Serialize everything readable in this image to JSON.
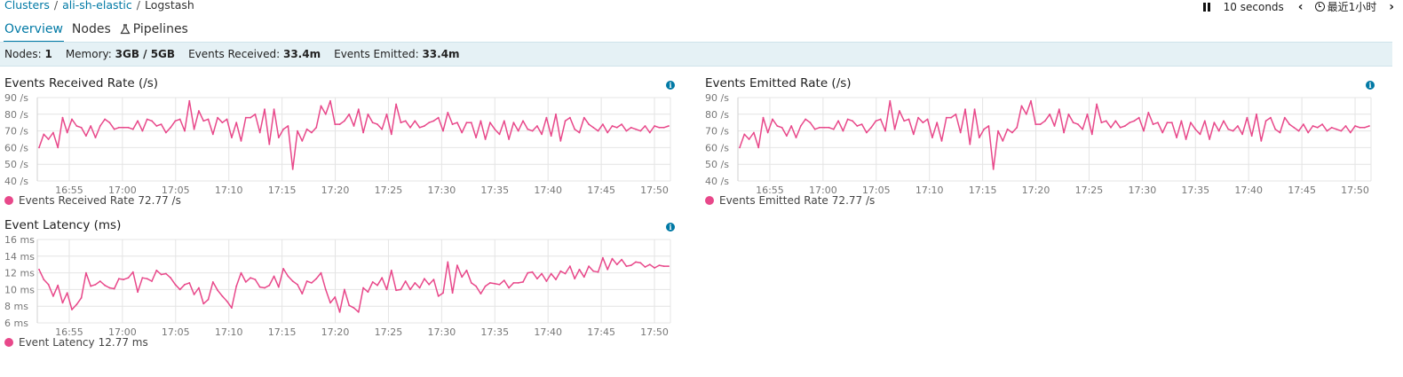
{
  "breadcrumb": {
    "clusters": "Clusters",
    "cluster": "ali-sh-elastic",
    "current": "Logstash",
    "sep": "/"
  },
  "tabs": {
    "overview": "Overview",
    "nodes": "Nodes",
    "pipelines": "Pipelines"
  },
  "controls": {
    "interval": "10 seconds",
    "time_range": "最近1小时"
  },
  "status": {
    "nodes_label": "Nodes:",
    "nodes_value": "1",
    "memory_label": "Memory:",
    "memory_value": "3GB / 5GB",
    "received_label": "Events Received:",
    "received_value": "33.4m",
    "emitted_label": "Events Emitted:",
    "emitted_value": "33.4m"
  },
  "colors": {
    "series": "#e8488a",
    "accent": "#0079a5",
    "status_bg": "#e5f1f5"
  },
  "icons": {
    "info": "info-icon",
    "pause": "pause-icon",
    "prev": "chevron-left-icon",
    "next": "chevron-right-icon",
    "clock": "clock-icon",
    "pipelines": "flask-icon"
  },
  "charts": {
    "received": {
      "title": "Events Received Rate (/s)",
      "legend_name": "Events Received Rate",
      "legend_value": "72.77 /s"
    },
    "emitted": {
      "title": "Events Emitted Rate (/s)",
      "legend_name": "Events Emitted Rate",
      "legend_value": "72.77 /s"
    },
    "latency": {
      "title": "Event Latency (ms)",
      "legend_name": "Event Latency",
      "legend_value": "12.77 ms"
    }
  },
  "chart_data": [
    {
      "type": "line",
      "title": "Events Received Rate (/s)",
      "ylim": [
        40,
        90
      ],
      "y_ticks": [
        "40 /s",
        "50 /s",
        "60 /s",
        "70 /s",
        "80 /s",
        "90 /s"
      ],
      "x_ticks": [
        "16:55",
        "17:00",
        "17:05",
        "17:10",
        "17:15",
        "17:20",
        "17:25",
        "17:30",
        "17:35",
        "17:40",
        "17:45",
        "17:50"
      ],
      "x_range": [
        "16:52",
        "17:51.5"
      ],
      "grid": true,
      "series": [
        {
          "name": "Events Received Rate",
          "values": [
            60,
            68,
            65,
            69,
            60,
            78,
            69,
            77,
            73,
            72,
            67,
            73,
            66,
            73,
            77,
            75,
            71,
            72,
            72,
            72,
            71,
            76,
            70,
            77,
            76,
            73,
            74,
            69,
            72,
            76,
            77,
            70,
            88,
            71,
            82,
            76,
            77,
            68,
            78,
            75,
            77,
            66,
            75,
            64,
            78,
            78,
            80,
            69,
            83,
            62,
            83,
            66,
            71,
            73,
            47,
            70,
            64,
            71,
            69,
            72,
            85,
            80,
            88,
            74,
            74,
            76,
            80,
            73,
            83,
            69,
            80,
            75,
            74,
            71,
            80,
            68,
            86,
            75,
            76,
            72,
            76,
            72,
            73,
            75,
            76,
            78,
            70,
            81,
            74,
            75,
            69,
            75,
            75,
            66,
            76,
            65,
            75,
            71,
            68,
            76,
            65,
            75,
            70,
            76,
            71,
            70,
            73,
            68,
            78,
            67,
            80,
            64,
            76,
            78,
            71,
            69,
            78,
            74,
            72,
            70,
            74,
            69,
            73,
            72,
            74,
            70,
            72,
            71,
            70,
            73,
            69,
            73,
            72,
            72,
            73
          ]
        }
      ]
    },
    {
      "type": "line",
      "title": "Events Emitted Rate (/s)",
      "ylim": [
        40,
        90
      ],
      "y_ticks": [
        "40 /s",
        "50 /s",
        "60 /s",
        "70 /s",
        "80 /s",
        "90 /s"
      ],
      "x_ticks": [
        "16:55",
        "17:00",
        "17:05",
        "17:10",
        "17:15",
        "17:20",
        "17:25",
        "17:30",
        "17:35",
        "17:40",
        "17:45",
        "17:50"
      ],
      "x_range": [
        "16:52",
        "17:51.5"
      ],
      "grid": true,
      "series": [
        {
          "name": "Events Emitted Rate",
          "values": [
            60,
            68,
            65,
            69,
            60,
            78,
            69,
            77,
            73,
            72,
            67,
            73,
            66,
            73,
            77,
            75,
            71,
            72,
            72,
            72,
            71,
            76,
            70,
            77,
            76,
            73,
            74,
            69,
            72,
            76,
            77,
            70,
            88,
            71,
            82,
            76,
            77,
            68,
            78,
            75,
            77,
            66,
            75,
            64,
            78,
            78,
            80,
            69,
            83,
            62,
            83,
            66,
            71,
            73,
            47,
            70,
            64,
            71,
            69,
            72,
            85,
            80,
            88,
            74,
            74,
            76,
            80,
            73,
            83,
            69,
            80,
            75,
            74,
            71,
            80,
            68,
            86,
            75,
            76,
            72,
            76,
            72,
            73,
            75,
            76,
            78,
            70,
            81,
            74,
            75,
            69,
            75,
            75,
            66,
            76,
            65,
            75,
            71,
            68,
            76,
            65,
            75,
            70,
            76,
            71,
            70,
            73,
            68,
            78,
            67,
            80,
            64,
            76,
            78,
            71,
            69,
            78,
            74,
            72,
            70,
            74,
            69,
            73,
            72,
            74,
            70,
            72,
            71,
            70,
            73,
            69,
            73,
            72,
            72,
            73
          ]
        }
      ]
    },
    {
      "type": "line",
      "title": "Event Latency (ms)",
      "ylim": [
        6,
        16
      ],
      "y_ticks": [
        "6 ms",
        "8 ms",
        "10 ms",
        "12 ms",
        "14 ms",
        "16 ms"
      ],
      "x_ticks": [
        "16:55",
        "17:00",
        "17:05",
        "17:10",
        "17:15",
        "17:20",
        "17:25",
        "17:30",
        "17:35",
        "17:40",
        "17:45",
        "17:50"
      ],
      "x_range": [
        "16:52",
        "17:51.5"
      ],
      "grid": true,
      "series": [
        {
          "name": "Event Latency",
          "values": [
            12.4,
            11.2,
            10.6,
            9.2,
            10.5,
            8.4,
            9.6,
            7.6,
            8.2,
            9.0,
            12.0,
            10.4,
            10.6,
            11.0,
            10.5,
            10.2,
            10.1,
            11.3,
            11.2,
            11.4,
            12.1,
            9.7,
            11.4,
            11.3,
            11.0,
            12.3,
            11.8,
            11.9,
            11.4,
            10.6,
            10.0,
            10.6,
            10.8,
            9.4,
            10.2,
            8.3,
            8.8,
            10.9,
            9.9,
            9.2,
            8.6,
            7.8,
            10.4,
            12.0,
            10.9,
            11.4,
            11.2,
            10.3,
            10.2,
            10.5,
            11.6,
            10.3,
            12.5,
            11.6,
            11.0,
            10.6,
            9.5,
            11.0,
            10.8,
            11.3,
            12.0,
            10.0,
            8.4,
            9.1,
            7.3,
            10.0,
            8.1,
            7.8,
            7.3,
            10.2,
            9.7,
            10.9,
            10.5,
            11.4,
            10.0,
            12.3,
            9.9,
            10.0,
            11.0,
            10.0,
            10.8,
            10.2,
            11.3,
            10.6,
            11.2,
            9.2,
            9.6,
            13.3,
            9.6,
            12.9,
            11.5,
            12.3,
            10.8,
            10.4,
            9.5,
            10.4,
            10.8,
            10.7,
            10.6,
            11.1,
            10.2,
            10.8,
            10.8,
            10.9,
            12.0,
            12.1,
            11.3,
            11.9,
            11.0,
            11.9,
            11.2,
            12.2,
            11.9,
            12.8,
            11.3,
            12.4,
            11.5,
            12.8,
            12.2,
            12.1,
            13.8,
            12.4,
            13.7,
            13.0,
            13.6,
            12.8,
            12.9,
            13.3,
            13.2,
            12.7,
            13.0,
            12.6,
            12.9,
            12.8,
            12.8
          ]
        }
      ]
    }
  ]
}
